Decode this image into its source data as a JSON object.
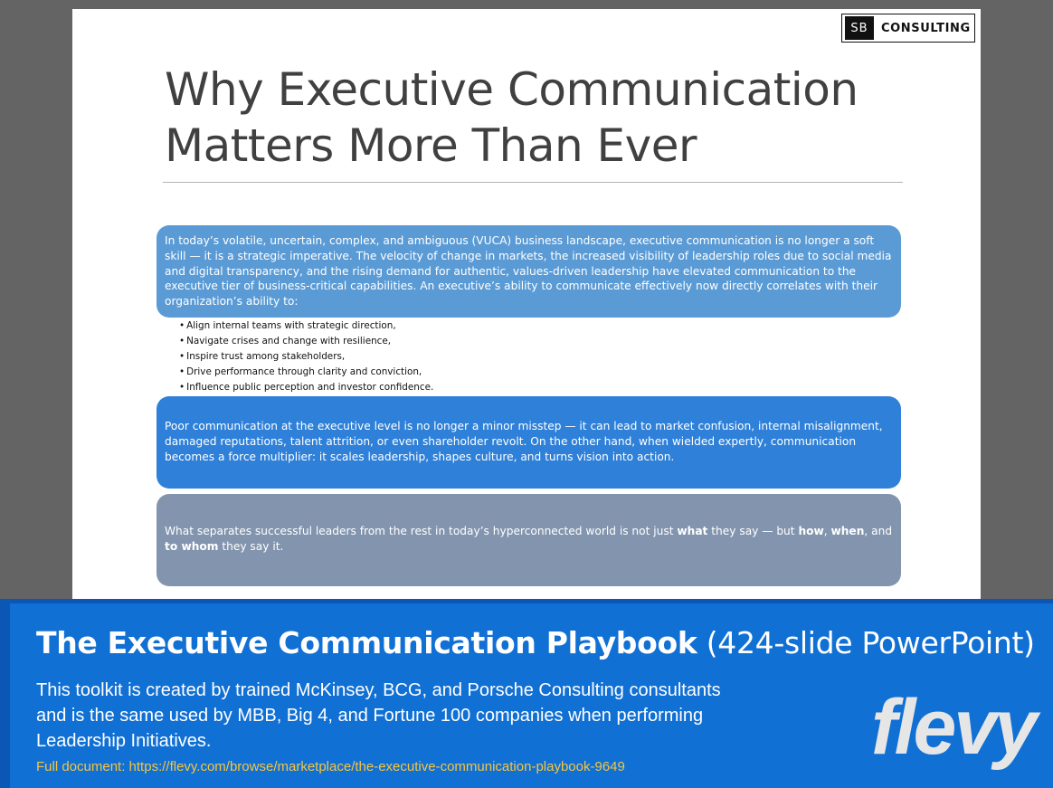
{
  "slide": {
    "logo": {
      "mark": "SB",
      "text": "CONSULTING"
    },
    "title_line1": "Why Executive Communication",
    "title_line2": "Matters More Than Ever",
    "box1_text": "In today’s volatile, uncertain, complex, and ambiguous (VUCA) business landscape, executive communication is no longer a soft skill — it is a strategic imperative. The velocity of change in markets, the increased visibility of leadership roles due to social media and digital transparency, and the rising demand for authentic, values-driven leadership have elevated communication to the executive tier of business-critical capabilities. An executive’s ability to communicate effectively now directly correlates with their organization’s ability to:",
    "bullets": [
      "Align internal teams with strategic direction,",
      "Navigate crises and change with resilience,",
      "Inspire trust among stakeholders,",
      "Drive performance through clarity and conviction,",
      "Influence public perception and investor confidence."
    ],
    "box2_text": "Poor communication at the executive level is no longer a minor misstep — it can lead to market confusion, internal misalignment, damaged reputations, talent attrition, or even shareholder revolt. On the other hand, when wielded expertly, communication becomes a force multiplier: it scales leadership, shapes culture, and turns vision into action.",
    "box3": {
      "part1": "What separates successful leaders from the rest in today’s hyperconnected world is not just ",
      "what": "what",
      "part2": " they say — but ",
      "how": "how",
      "sep1": ", ",
      "when": "when",
      "part3": ", and ",
      "to_whom": "to whom",
      "part4": " they say it."
    }
  },
  "banner": {
    "title_bold": "The Executive Communication Playbook",
    "title_rest": " (424-slide PowerPoint)",
    "description": "This toolkit is created by trained McKinsey, BCG, and Porsche Consulting consultants and is the same used by MBB, Big 4, and Fortune 100 companies when performing Leadership Initiatives.",
    "link": "Full document: https://flevy.com/browse/marketplace/the-executive-communication-playbook-9649",
    "brand": "flevy"
  }
}
